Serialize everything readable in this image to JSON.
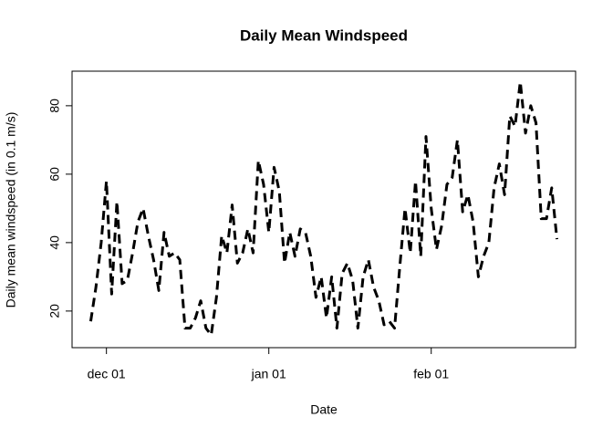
{
  "chart_data": {
    "type": "line",
    "title": "Daily Mean Windspeed",
    "x_label": "Date",
    "y_label": "Daily mean windspeed (in 0.1 m/s)",
    "x": [
      "nov 28",
      "nov 29",
      "nov 30",
      "dec 01",
      "dec 02",
      "dec 03",
      "dec 04",
      "dec 05",
      "dec 06",
      "dec 07",
      "dec 08",
      "dec 09",
      "dec 10",
      "dec 11",
      "dec 12",
      "dec 13",
      "dec 14",
      "dec 15",
      "dec 16",
      "dec 17",
      "dec 18",
      "dec 19",
      "dec 20",
      "dec 21",
      "dec 22",
      "dec 23",
      "dec 24",
      "dec 25",
      "dec 26",
      "dec 27",
      "dec 28",
      "dec 29",
      "dec 30",
      "dec 31",
      "jan 01",
      "jan 02",
      "jan 03",
      "jan 04",
      "jan 05",
      "jan 06",
      "jan 07",
      "jan 08",
      "jan 09",
      "jan 10",
      "jan 11",
      "jan 12",
      "jan 13",
      "jan 14",
      "jan 15",
      "jan 16",
      "jan 17",
      "jan 18",
      "jan 19",
      "jan 20",
      "jan 21",
      "jan 22",
      "jan 23",
      "jan 24",
      "jan 25",
      "jan 26",
      "jan 27",
      "jan 28",
      "jan 29",
      "jan 30",
      "jan 31",
      "feb 01",
      "feb 02",
      "feb 03",
      "feb 04",
      "feb 05",
      "feb 06",
      "feb 07",
      "feb 08",
      "feb 09",
      "feb 10",
      "feb 11",
      "feb 12",
      "feb 13",
      "feb 14",
      "feb 15",
      "feb 16",
      "feb 17",
      "feb 18",
      "feb 19",
      "feb 20",
      "feb 21",
      "feb 22",
      "feb 23",
      "feb 24",
      "feb 25"
    ],
    "series": [
      {
        "color": "#000000",
        "values": [
          17,
          27,
          40,
          58,
          25,
          52,
          28,
          29,
          37,
          46,
          50,
          42,
          35,
          26,
          43,
          36,
          37,
          35,
          15,
          15,
          18,
          23,
          15,
          13,
          24,
          42,
          37,
          51,
          34,
          37,
          44,
          37,
          64,
          57,
          43,
          62,
          55,
          34,
          43,
          36,
          44,
          43,
          36,
          24,
          30,
          18,
          30,
          15,
          31,
          34,
          29,
          15,
          30,
          35,
          27,
          23,
          16,
          17,
          15,
          33,
          50,
          37,
          58,
          36,
          71,
          50,
          38,
          45,
          57,
          59,
          70,
          49,
          54,
          46,
          30,
          36,
          40,
          56,
          63,
          54,
          77,
          74,
          87,
          72,
          80,
          75,
          47,
          47,
          56,
          41
        ]
      }
    ],
    "xticks": [
      "dec 01",
      "jan 01",
      "feb 01"
    ],
    "ylim": [
      9.3,
      90.1
    ],
    "yticks": [
      20,
      40,
      60,
      80
    ]
  }
}
